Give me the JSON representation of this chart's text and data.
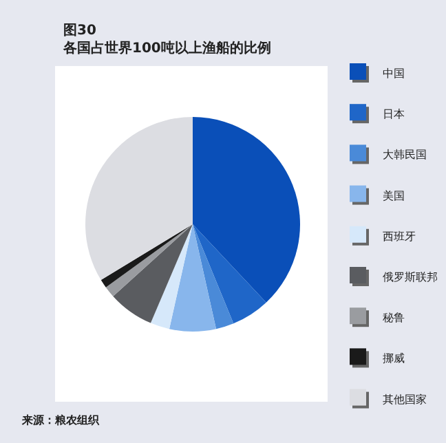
{
  "chart_data": {
    "type": "pie",
    "title": "图30",
    "subtitle": "各国占世界100吨以上渔船的比例",
    "categories": [
      "中国",
      "日本",
      "大韩民国",
      "美国",
      "西班牙",
      "俄罗斯联邦",
      "秘鲁",
      "挪威",
      "其他国家"
    ],
    "values": [
      38,
      5.8,
      2.7,
      7.0,
      2.9,
      6.9,
      1.7,
      1.3,
      33.7
    ],
    "colors": [
      "#0a4fb8",
      "#1f66c8",
      "#4a8ad8",
      "#88b6ec",
      "#d6e8fa",
      "#5a5c60",
      "#9a9ca0",
      "#1a1a1a",
      "#dcdde2"
    ],
    "legend": "right",
    "annotations": [
      "来源：粮农组织"
    ]
  }
}
